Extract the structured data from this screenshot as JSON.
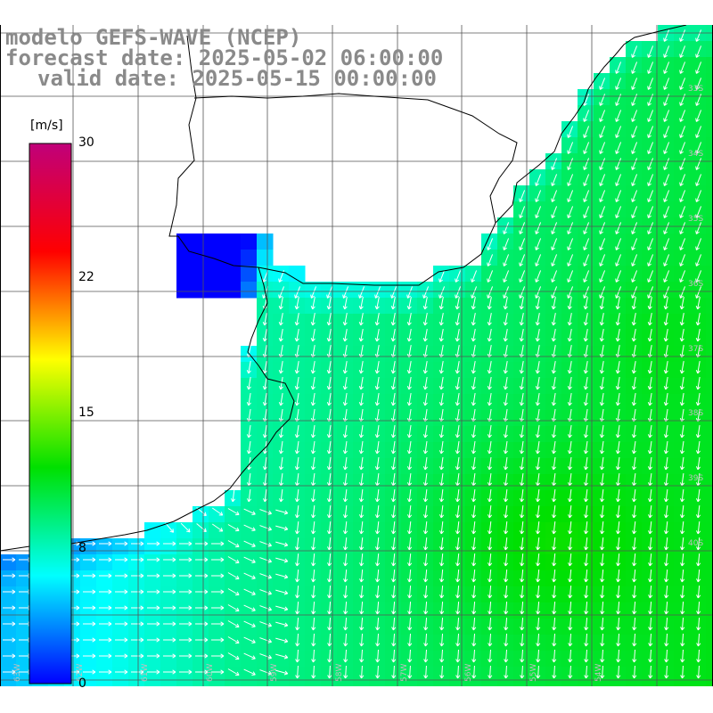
{
  "title": {
    "model": "modelo GEFS-WAVE (NCEP)",
    "forecast": "forecast date: 2025-05-02 06:00:00",
    "valid": "valid date: 2025-05-15 00:00:00"
  },
  "colorbar": {
    "unit": "[m/s]",
    "min": 0,
    "max": 30,
    "labels": [
      "30",
      "22",
      "15",
      "8",
      "0"
    ],
    "colors": [
      "#0000ff",
      "#00ffff",
      "#00e000",
      "#ffff00",
      "#ff0000",
      "#c0007a"
    ]
  },
  "map": {
    "variable": "wind speed",
    "lat_labels": [
      "33S",
      "34S",
      "35S",
      "36S",
      "37S",
      "38S",
      "39S",
      "40S"
    ],
    "lon_labels": [
      "63W",
      "62W",
      "61W",
      "60W",
      "59W",
      "58W",
      "57W",
      "56W",
      "55W",
      "54W"
    ],
    "land_color": "#ffffff",
    "grid_color": "#555555",
    "arrow_color": "#ffffff",
    "coast_color": "#000000"
  }
}
